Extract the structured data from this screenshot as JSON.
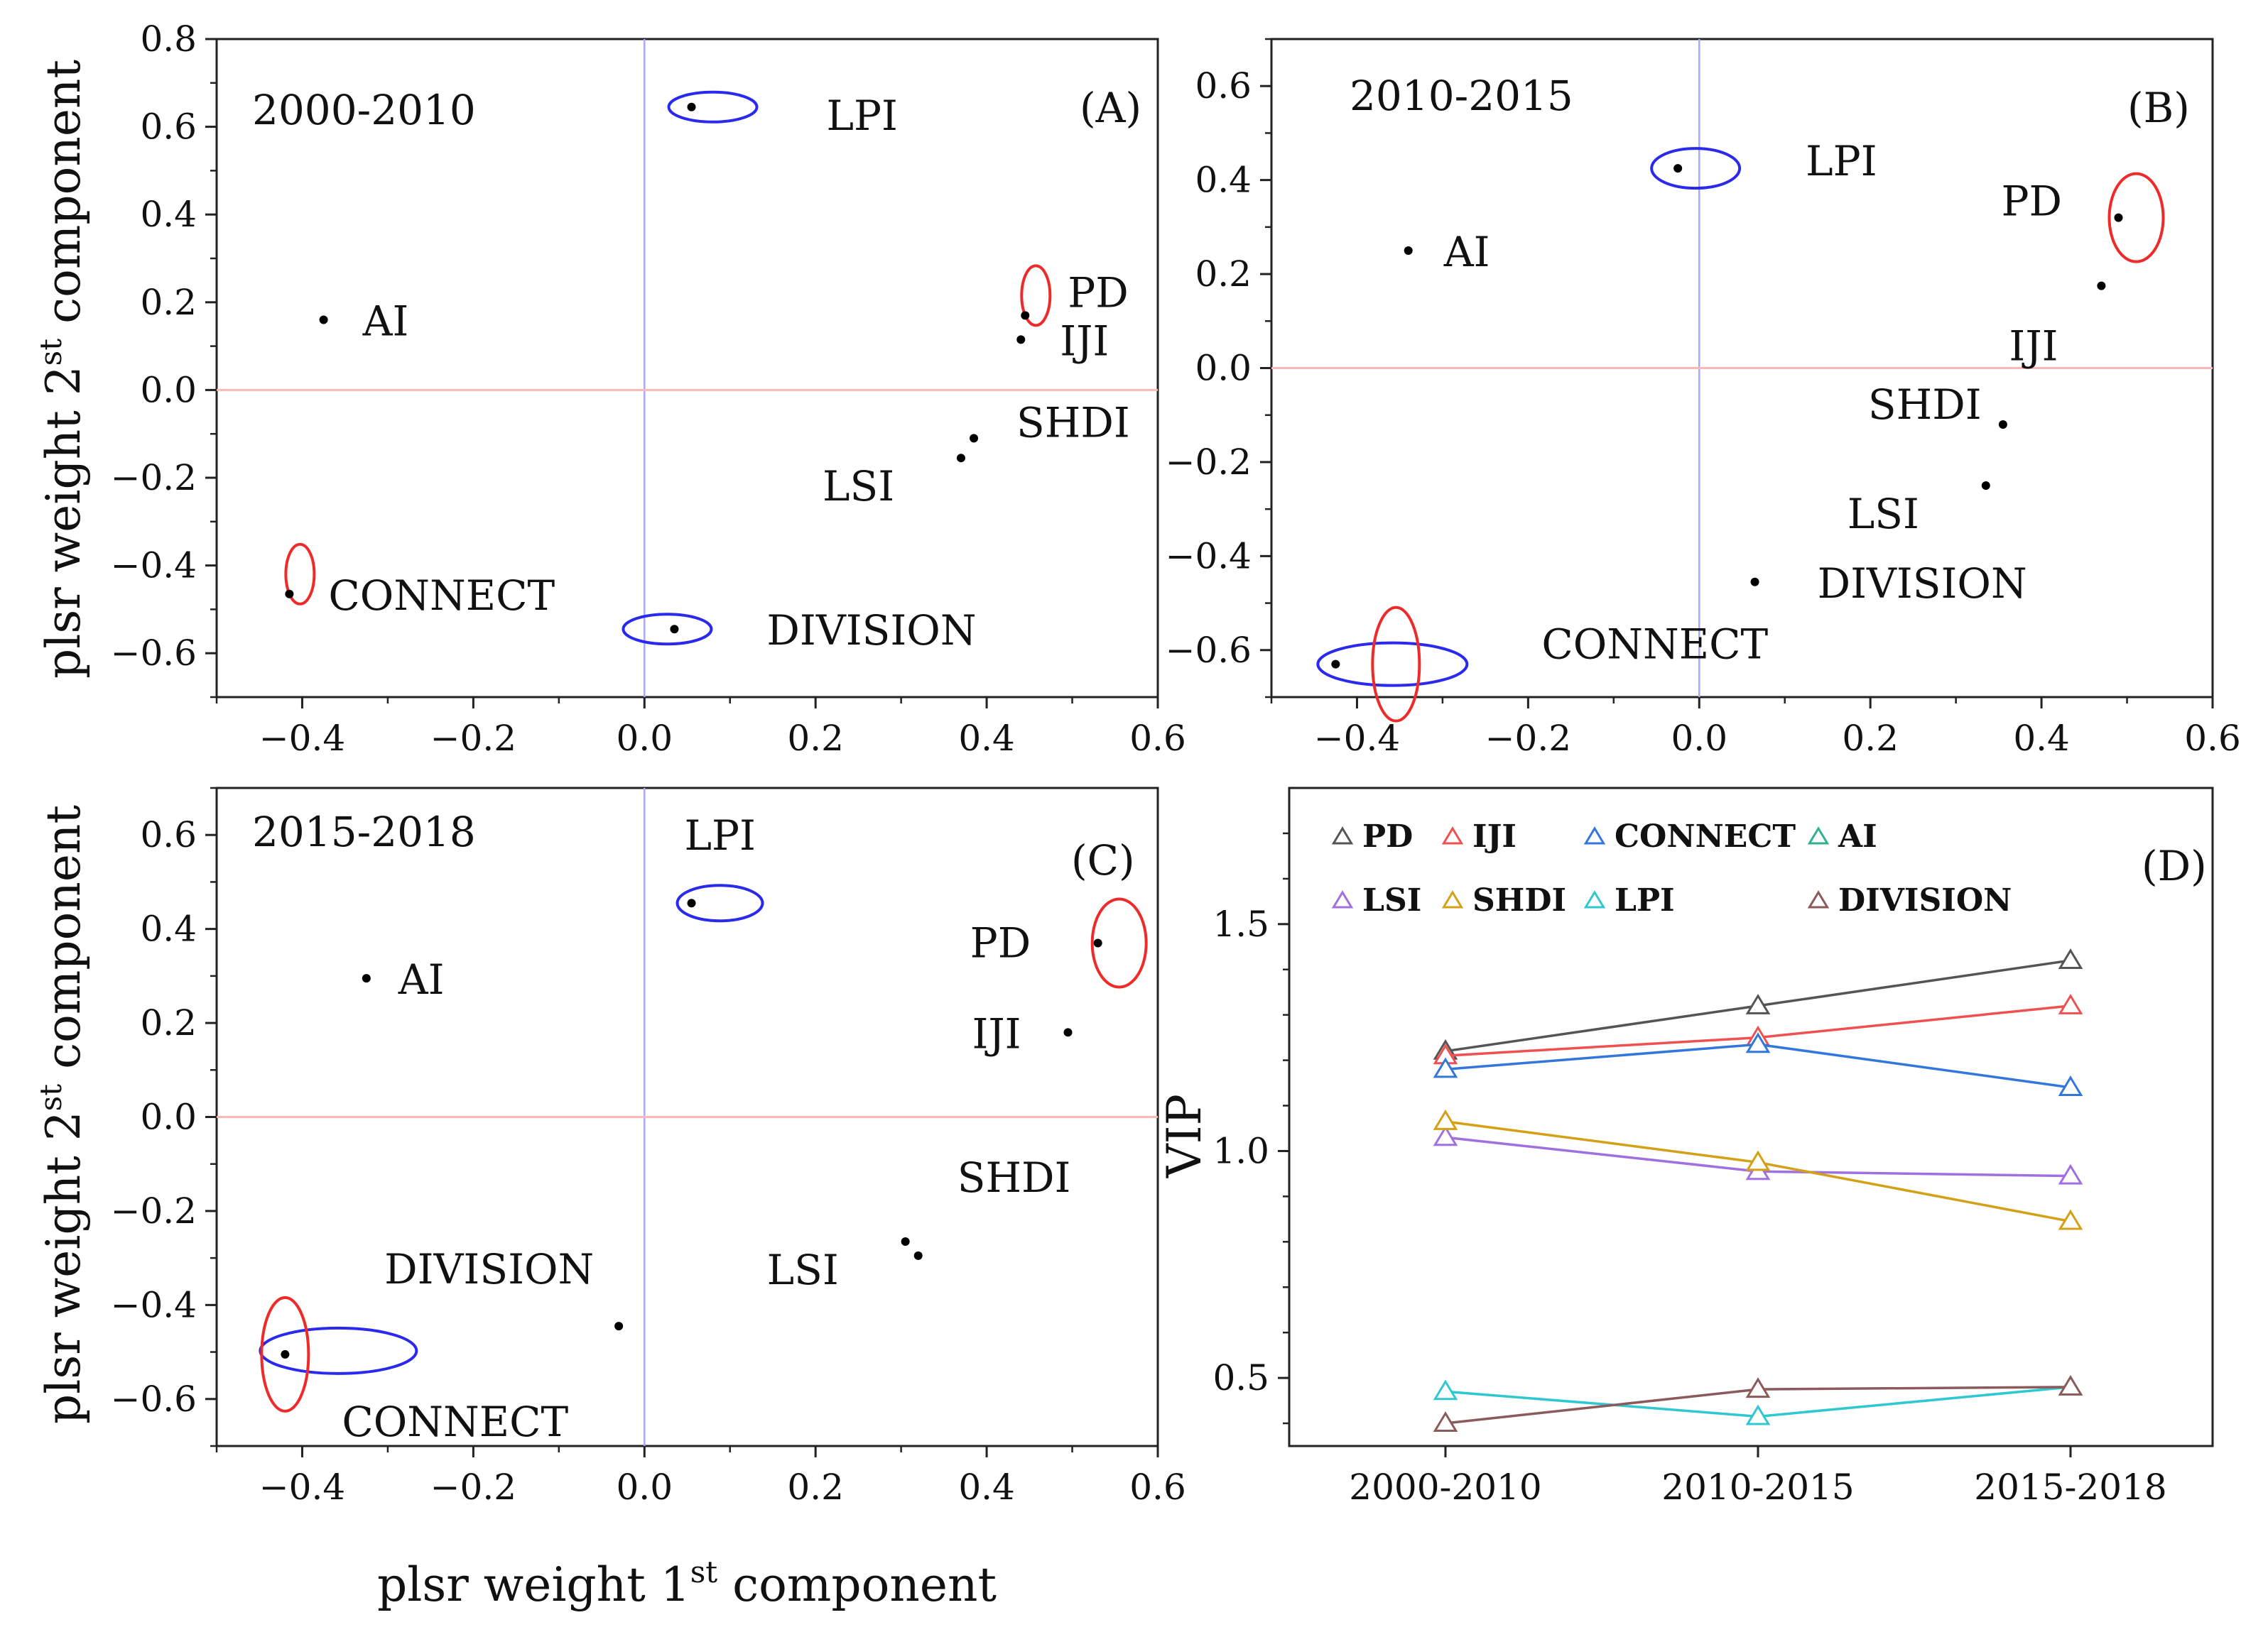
{
  "chart_data": [
    {
      "type": "scatter",
      "panel": "(A)",
      "period": "2000-2010",
      "xlim": [
        -0.5,
        0.6
      ],
      "ylim": [
        -0.7,
        0.8
      ],
      "xticks": [
        -0.4,
        -0.2,
        0.0,
        0.2,
        0.4,
        0.6
      ],
      "xtick_labels": [
        "−0.4",
        "−0.2",
        "0.0",
        "0.2",
        "0.4",
        "0.6"
      ],
      "yticks": [
        -0.6,
        -0.4,
        -0.2,
        0.0,
        0.2,
        0.4,
        0.6,
        0.8
      ],
      "ytick_labels": [
        "−0.6",
        "−0.4",
        "−0.2",
        "0.0",
        "0.2",
        "0.4",
        "0.6",
        "0.8"
      ],
      "ylabel_main": "plsr weight 2",
      "ylabel_sup": "st",
      "ylabel_tail": " component",
      "points": [
        {
          "name": "LPI",
          "x": 0.055,
          "y": 0.645,
          "highlight": "blue"
        },
        {
          "name": "AI",
          "x": -0.375,
          "y": 0.16
        },
        {
          "name": "PD",
          "x": 0.445,
          "y": 0.17,
          "highlight": "red"
        },
        {
          "name": "IJI",
          "x": 0.44,
          "y": 0.115
        },
        {
          "name": "SHDI",
          "x": 0.385,
          "y": -0.11
        },
        {
          "name": "LSI",
          "x": 0.37,
          "y": -0.155
        },
        {
          "name": "CONNECT",
          "x": -0.415,
          "y": -0.465,
          "highlight": "red"
        },
        {
          "name": "DIVISION",
          "x": 0.035,
          "y": -0.545,
          "highlight": "blue"
        }
      ]
    },
    {
      "type": "scatter",
      "panel": "(B)",
      "period": "2010-2015",
      "xlim": [
        -0.5,
        0.6
      ],
      "ylim": [
        -0.7,
        0.7
      ],
      "xticks": [
        -0.4,
        -0.2,
        0.0,
        0.2,
        0.4,
        0.6
      ],
      "xtick_labels": [
        "−0.4",
        "−0.2",
        "0.0",
        "0.2",
        "0.4",
        "0.6"
      ],
      "yticks": [
        -0.6,
        -0.4,
        -0.2,
        0.0,
        0.2,
        0.4,
        0.6
      ],
      "ytick_labels": [
        "−0.6",
        "−0.4",
        "−0.2",
        "0.0",
        "0.2",
        "0.4",
        "0.6"
      ],
      "points": [
        {
          "name": "LPI",
          "x": -0.025,
          "y": 0.425,
          "highlight": "blue"
        },
        {
          "name": "AI",
          "x": -0.34,
          "y": 0.25
        },
        {
          "name": "PD",
          "x": 0.49,
          "y": 0.32,
          "highlight": "red"
        },
        {
          "name": "IJI",
          "x": 0.47,
          "y": 0.175
        },
        {
          "name": "SHDI",
          "x": 0.355,
          "y": -0.12
        },
        {
          "name": "LSI",
          "x": 0.335,
          "y": -0.25
        },
        {
          "name": "DIVISION",
          "x": 0.065,
          "y": -0.455
        },
        {
          "name": "CONNECT",
          "x": -0.425,
          "y": -0.63,
          "highlight": "both"
        }
      ]
    },
    {
      "type": "scatter",
      "panel": "(C)",
      "period": "2015-2018",
      "xlim": [
        -0.5,
        0.6
      ],
      "ylim": [
        -0.7,
        0.7
      ],
      "xticks": [
        -0.4,
        -0.2,
        0.0,
        0.2,
        0.4,
        0.6
      ],
      "xtick_labels": [
        "−0.4",
        "−0.2",
        "0.0",
        "0.2",
        "0.4",
        "0.6"
      ],
      "yticks": [
        -0.6,
        -0.4,
        -0.2,
        0.0,
        0.2,
        0.4,
        0.6
      ],
      "ytick_labels": [
        "−0.6",
        "−0.4",
        "−0.2",
        "0.0",
        "0.2",
        "0.4",
        "0.6"
      ],
      "xlabel_main": "plsr weight 1",
      "xlabel_sup": "st",
      "xlabel_tail": " component",
      "ylabel_main": "plsr weight 2",
      "ylabel_sup": "st",
      "ylabel_tail": " component",
      "points": [
        {
          "name": "LPI",
          "x": 0.055,
          "y": 0.455,
          "highlight": "blue"
        },
        {
          "name": "AI",
          "x": -0.325,
          "y": 0.295
        },
        {
          "name": "PD",
          "x": 0.53,
          "y": 0.37,
          "highlight": "red"
        },
        {
          "name": "IJI",
          "x": 0.495,
          "y": 0.18
        },
        {
          "name": "SHDI",
          "x": 0.32,
          "y": -0.295
        },
        {
          "name": "LSI",
          "x": 0.305,
          "y": -0.265
        },
        {
          "name": "DIVISION",
          "x": -0.03,
          "y": -0.445
        },
        {
          "name": "CONNECT",
          "x": -0.42,
          "y": -0.505,
          "highlight": "both"
        }
      ]
    },
    {
      "type": "line",
      "panel": "(D)",
      "ylabel": "VIP",
      "categories": [
        "2000-2010",
        "2010-2015",
        "2015-2018"
      ],
      "ylim": [
        0.35,
        1.8
      ],
      "yticks": [
        0.5,
        1.0,
        1.5
      ],
      "ytick_labels": [
        "0.5",
        "1.0",
        "1.5"
      ],
      "series": [
        {
          "name": "PD",
          "color": "#555555",
          "values": [
            1.22,
            1.32,
            1.42
          ]
        },
        {
          "name": "IJI",
          "color": "#f05050",
          "values": [
            1.21,
            1.25,
            1.32
          ]
        },
        {
          "name": "CONNECT",
          "color": "#3377dd",
          "values": [
            1.18,
            1.235,
            1.14
          ]
        },
        {
          "name": "AI",
          "color": "#30b090",
          "values": [
            null,
            null,
            null
          ]
        },
        {
          "name": "LSI",
          "color": "#a070e0",
          "values": [
            1.03,
            0.955,
            0.945
          ]
        },
        {
          "name": "SHDI",
          "color": "#d4a017",
          "values": [
            1.065,
            0.975,
            0.845
          ]
        },
        {
          "name": "LPI",
          "color": "#30c8d0",
          "values": [
            0.47,
            0.415,
            0.48
          ]
        },
        {
          "name": "DIVISION",
          "color": "#8b5a5a",
          "values": [
            0.4,
            0.475,
            0.48
          ]
        }
      ]
    }
  ]
}
